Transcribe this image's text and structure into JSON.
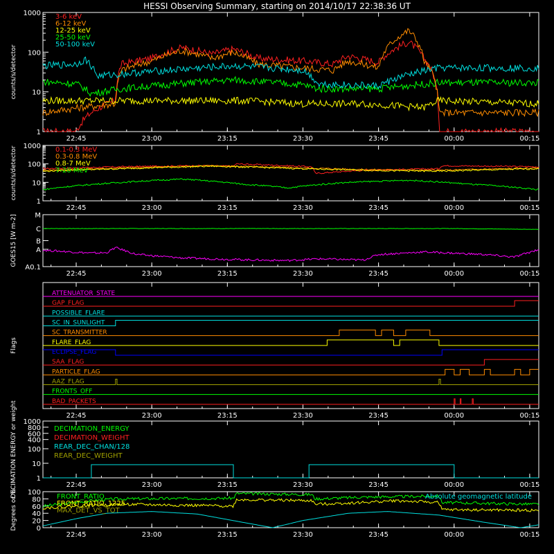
{
  "title": "HESSI Observing Summary, starting on 2014/10/17 22:38:36 UT",
  "colors": {
    "red": "#ff2020",
    "orange": "#ff8c00",
    "yellow": "#ffff00",
    "green": "#00ff00",
    "cyan": "#00e0e0",
    "magenta": "#ff00ff",
    "blue": "#0000ff",
    "olive": "#a0a000",
    "white": "#ffffff"
  },
  "chart_data": [
    {
      "type": "line",
      "ylabel": "counts/s/detector",
      "yscale": "log",
      "ylim": [
        1,
        1000
      ],
      "ytick_labels": [
        "1",
        "10",
        "100",
        "1000"
      ],
      "xtick_labels": [
        "22:45",
        "23:00",
        "23:15",
        "23:30",
        "23:45",
        "00:00",
        "00:15"
      ],
      "legend": [
        "3-6 keV",
        "6-12 keV",
        "12-25 keV",
        "25-50 keV",
        "50-100 keV"
      ],
      "series": [
        {
          "name": "3-6 keV",
          "color": "red",
          "points": [
            [
              22.64,
              1
            ],
            [
              22.75,
              1
            ],
            [
              22.8,
              3
            ],
            [
              22.88,
              6
            ],
            [
              22.9,
              50
            ],
            [
              23.0,
              70
            ],
            [
              23.1,
              130
            ],
            [
              23.2,
              90
            ],
            [
              23.27,
              120
            ],
            [
              23.35,
              70
            ],
            [
              23.5,
              60
            ],
            [
              23.6,
              50
            ],
            [
              23.65,
              80
            ],
            [
              23.75,
              55
            ],
            [
              23.85,
              180
            ],
            [
              23.9,
              70
            ],
            [
              23.95,
              1
            ],
            [
              24.0,
              1
            ],
            [
              24.28,
              1
            ]
          ]
        },
        {
          "name": "6-12 keV",
          "color": "orange",
          "points": [
            [
              22.64,
              3
            ],
            [
              22.88,
              5
            ],
            [
              22.9,
              35
            ],
            [
              23.0,
              60
            ],
            [
              23.1,
              110
            ],
            [
              23.2,
              70
            ],
            [
              23.27,
              100
            ],
            [
              23.35,
              50
            ],
            [
              23.5,
              40
            ],
            [
              23.6,
              35
            ],
            [
              23.65,
              60
            ],
            [
              23.75,
              40
            ],
            [
              23.85,
              350
            ],
            [
              23.9,
              60
            ],
            [
              23.95,
              3
            ],
            [
              24.28,
              3
            ]
          ]
        },
        {
          "name": "12-25 keV",
          "color": "yellow",
          "points": [
            [
              22.64,
              6
            ],
            [
              22.9,
              6
            ],
            [
              23.1,
              6
            ],
            [
              23.3,
              6
            ],
            [
              23.5,
              5
            ],
            [
              23.7,
              5
            ],
            [
              23.9,
              4
            ],
            [
              23.95,
              6
            ],
            [
              24.28,
              5
            ]
          ]
        },
        {
          "name": "25-50 keV",
          "color": "green",
          "points": [
            [
              22.64,
              18
            ],
            [
              22.75,
              16
            ],
            [
              22.8,
              9
            ],
            [
              22.9,
              12
            ],
            [
              23.27,
              20
            ],
            [
              23.5,
              15
            ],
            [
              23.55,
              12
            ],
            [
              23.75,
              12
            ],
            [
              23.95,
              17
            ],
            [
              24.28,
              17
            ]
          ]
        },
        {
          "name": "50-100 keV",
          "color": "cyan",
          "points": [
            [
              22.64,
              45
            ],
            [
              22.75,
              50
            ],
            [
              22.78,
              65
            ],
            [
              22.82,
              25
            ],
            [
              22.9,
              28
            ],
            [
              23.27,
              45
            ],
            [
              23.5,
              35
            ],
            [
              23.55,
              16
            ],
            [
              23.75,
              14
            ],
            [
              23.95,
              40
            ],
            [
              24.28,
              40
            ]
          ]
        }
      ]
    },
    {
      "type": "line",
      "ylabel": "counts/s/detector",
      "yscale": "log",
      "ylim": [
        1,
        1000
      ],
      "ytick_labels": [
        "1",
        "10",
        "100",
        "1000"
      ],
      "xtick_labels": [
        "22:45",
        "23:00",
        "23:15",
        "23:30",
        "23:45",
        "00:00",
        "00:15"
      ],
      "legend": [
        "0.1-0.3 MeV",
        "0.3-0.8 MeV",
        "0.8-7 MeV",
        "7-20 MeV"
      ],
      "series": [
        {
          "name": "0.1-0.3 MeV",
          "color": "red",
          "points": [
            [
              22.64,
              55
            ],
            [
              22.9,
              70
            ],
            [
              23.15,
              80
            ],
            [
              23.27,
              75
            ],
            [
              23.28,
              100
            ],
            [
              23.53,
              70
            ],
            [
              23.54,
              30
            ],
            [
              23.7,
              45
            ],
            [
              23.95,
              55
            ],
            [
              23.96,
              80
            ],
            [
              24.28,
              70
            ]
          ]
        },
        {
          "name": "0.3-0.8 MeV",
          "color": "orange",
          "points": [
            [
              22.64,
              45
            ],
            [
              22.9,
              60
            ],
            [
              23.2,
              80
            ],
            [
              23.5,
              60
            ],
            [
              23.7,
              50
            ],
            [
              23.95,
              45
            ],
            [
              24.28,
              60
            ]
          ]
        },
        {
          "name": "0.8-7 MeV",
          "color": "yellow",
          "points": [
            [
              22.64,
              40
            ],
            [
              22.9,
              55
            ],
            [
              23.2,
              75
            ],
            [
              23.5,
              55
            ],
            [
              23.7,
              45
            ],
            [
              23.95,
              40
            ],
            [
              24.28,
              55
            ]
          ]
        },
        {
          "name": "7-20 MeV",
          "color": "green",
          "points": [
            [
              22.64,
              4
            ],
            [
              22.9,
              10
            ],
            [
              23.1,
              15
            ],
            [
              23.3,
              8
            ],
            [
              23.45,
              5
            ],
            [
              23.65,
              10
            ],
            [
              23.85,
              13
            ],
            [
              24.05,
              8
            ],
            [
              24.28,
              4
            ]
          ]
        }
      ]
    },
    {
      "type": "line",
      "ylabel": "GOES15 [W m-2]",
      "ytick_labels": [
        "A0.1",
        "A",
        "B",
        "C",
        "M"
      ],
      "xtick_labels": [
        "22:45",
        "23:00",
        "23:15",
        "23:30",
        "23:45",
        "00:00",
        "00:15"
      ],
      "series": [
        {
          "name": "",
          "color": "green",
          "points": [
            [
              22.64,
              2.2
            ],
            [
              23.0,
              2.2
            ],
            [
              23.5,
              2.2
            ],
            [
              24.0,
              2.2
            ],
            [
              24.28,
              2.15
            ]
          ]
        },
        {
          "name": "",
          "color": "magenta",
          "points": [
            [
              22.64,
              0.95
            ],
            [
              22.8,
              0.78
            ],
            [
              22.85,
              0.8
            ],
            [
              22.88,
              1.1
            ],
            [
              22.95,
              0.7
            ],
            [
              23.1,
              0.5
            ],
            [
              23.3,
              0.4
            ],
            [
              23.45,
              0.35
            ],
            [
              23.55,
              0.45
            ],
            [
              23.7,
              0.38
            ],
            [
              23.75,
              0.7
            ],
            [
              23.9,
              0.85
            ],
            [
              24.1,
              0.7
            ],
            [
              24.2,
              0.55
            ],
            [
              24.28,
              1.0
            ]
          ]
        }
      ]
    },
    {
      "type": "line",
      "ylabel": "Flags",
      "xtick_labels": [
        "22:45",
        "23:00",
        "23:15",
        "23:30",
        "23:45",
        "00:00",
        "00:15"
      ],
      "flags": [
        {
          "label": "ATTENUATOR_STATE",
          "color": "magenta"
        },
        {
          "label": "GAP_FLAG",
          "color": "red"
        },
        {
          "label": "POSSIBLE_FLARE",
          "color": "cyan"
        },
        {
          "label": "SC_IN_SUNLIGHT",
          "color": "cyan"
        },
        {
          "label": "SC_TRANSMITTER",
          "color": "orange"
        },
        {
          "label": "FLARE_FLAG",
          "color": "yellow"
        },
        {
          "label": "ECLIPSE_FLAG",
          "color": "blue"
        },
        {
          "label": "SAA_FLAG",
          "color": "red"
        },
        {
          "label": "PARTICLE_FLAG",
          "color": "orange"
        },
        {
          "label": "AAZ_FLAG",
          "color": "olive"
        },
        {
          "label": "FRONTS_OFF",
          "color": "green"
        },
        {
          "label": "BAD_PACKETS",
          "color": "red"
        }
      ]
    },
    {
      "type": "line",
      "ylabel": "DECIMATION ENERGY or weight",
      "yscale": "log",
      "ylim": [
        1,
        1000
      ],
      "ytick_labels": [
        "1",
        "10",
        "100",
        "400",
        "600",
        "800",
        "1000"
      ],
      "xtick_labels": [
        "22:45",
        "23:00",
        "23:15",
        "23:30",
        "23:45",
        "00:00",
        "00:15"
      ],
      "legend": [
        "DECIMATION_ENERGY",
        "DECIMATION_WEIGHT",
        "REAR_DEC_CHAN/128",
        "REAR_DEC_WEIGHT"
      ],
      "series": [
        {
          "name": "REAR_DEC_CHAN/128",
          "color": "cyan",
          "points": [
            [
              22.64,
              1
            ],
            [
              22.8,
              1
            ],
            [
              22.8,
              8
            ],
            [
              23.27,
              8
            ],
            [
              23.27,
              1
            ],
            [
              23.52,
              1
            ],
            [
              23.52,
              8
            ],
            [
              24.0,
              8
            ],
            [
              24.0,
              1
            ],
            [
              24.28,
              1
            ]
          ]
        }
      ]
    },
    {
      "type": "line",
      "ylabel": "Degrees or %",
      "ylim": [
        0,
        100
      ],
      "ytick_labels": [
        "0",
        "20",
        "40",
        "60",
        "80",
        "100"
      ],
      "xtick_labels": [
        "22:45",
        "23:00",
        "23:15",
        "23:30",
        "23:45",
        "00:00",
        "00:15"
      ],
      "legend": [
        "FRONT_RATIO",
        "FRONT_RATIO_1225",
        "MAX_DET_VS_TOT"
      ],
      "annotation": "Absolute geomagnetic latitude",
      "series": [
        {
          "name": "FRONT_RATIO",
          "color": "green",
          "points": [
            [
              22.64,
              60
            ],
            [
              22.8,
              75
            ],
            [
              22.88,
              80
            ],
            [
              23.27,
              82
            ],
            [
              23.28,
              95
            ],
            [
              23.53,
              92
            ],
            [
              23.54,
              80
            ],
            [
              23.7,
              85
            ],
            [
              23.95,
              88
            ],
            [
              23.96,
              70
            ],
            [
              24.28,
              65
            ]
          ]
        },
        {
          "name": "FRONT_RATIO_1225",
          "color": "yellow",
          "points": [
            [
              22.64,
              55
            ],
            [
              22.8,
              62
            ],
            [
              22.9,
              65
            ],
            [
              23.27,
              60
            ],
            [
              23.28,
              78
            ],
            [
              23.53,
              75
            ],
            [
              23.54,
              65
            ],
            [
              23.7,
              70
            ],
            [
              23.8,
              75
            ],
            [
              23.95,
              70
            ],
            [
              23.96,
              50
            ],
            [
              24.28,
              48
            ]
          ]
        },
        {
          "name": "Absolute geomagnetic latitude",
          "color": "cyan",
          "points": [
            [
              22.64,
              5
            ],
            [
              22.75,
              25
            ],
            [
              22.85,
              40
            ],
            [
              23.0,
              45
            ],
            [
              23.15,
              38
            ],
            [
              23.3,
              15
            ],
            [
              23.4,
              0
            ],
            [
              23.5,
              20
            ],
            [
              23.65,
              40
            ],
            [
              23.78,
              45
            ],
            [
              23.95,
              35
            ],
            [
              24.1,
              15
            ],
            [
              24.22,
              0
            ],
            [
              24.28,
              8
            ]
          ]
        }
      ]
    }
  ]
}
